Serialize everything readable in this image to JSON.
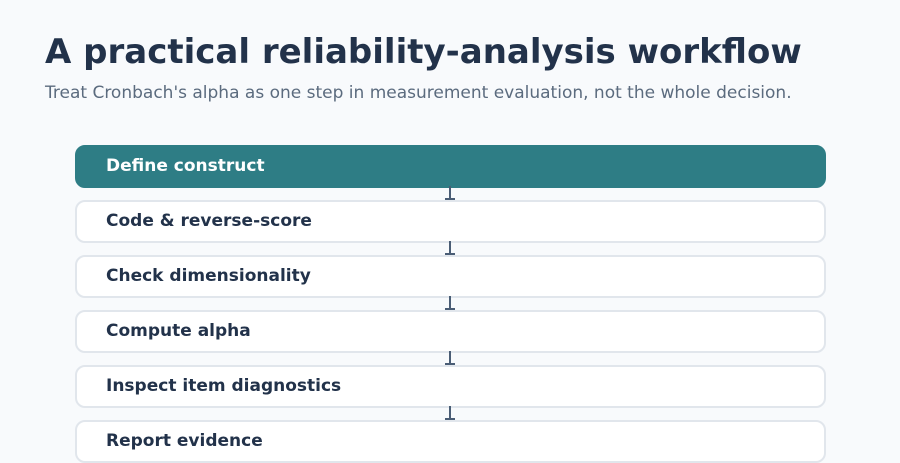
{
  "header": {
    "title": "A practical reliability-analysis workflow",
    "subtitle": "Treat Cronbach's alpha as one step in measurement evaluation, not the whole decision."
  },
  "steps": [
    {
      "label": "Define construct",
      "active": true
    },
    {
      "label": "Code & reverse-score",
      "active": false
    },
    {
      "label": "Check dimensionality",
      "active": false
    },
    {
      "label": "Compute alpha",
      "active": false
    },
    {
      "label": "Inspect item diagnostics",
      "active": false
    },
    {
      "label": "Report evidence",
      "active": false
    }
  ],
  "colors": {
    "active_step": "#2e7d85",
    "step_border": "#e1e6ec",
    "text": "#22324a",
    "connector": "#4a5d75"
  }
}
